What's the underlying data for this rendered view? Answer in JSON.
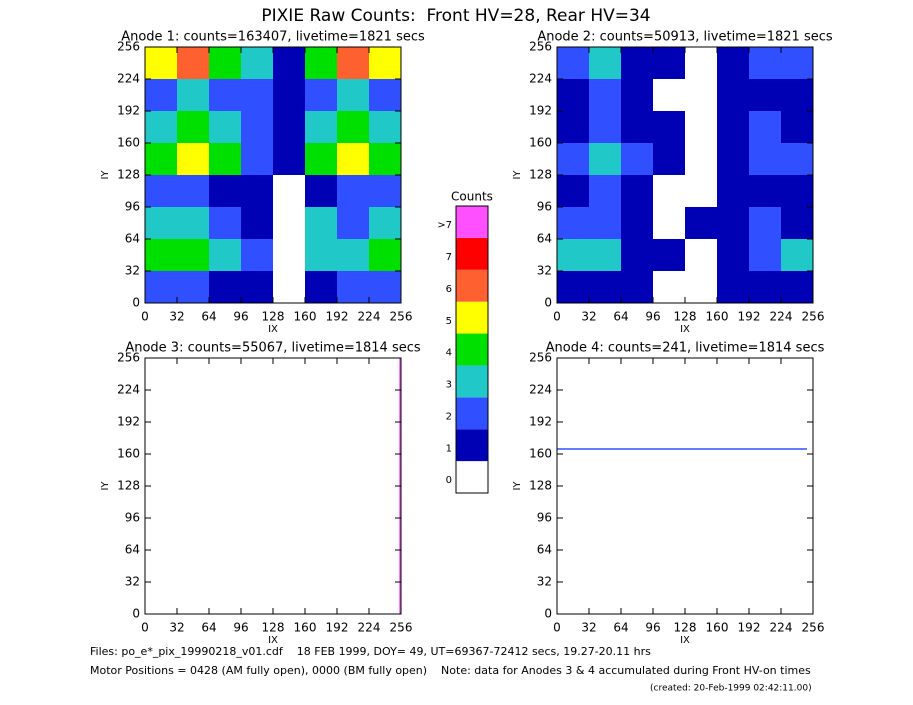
{
  "title": "PIXIE Raw Counts:  Front HV=28, Rear HV=34",
  "notes": [
    "Files: po_e*_pix_19990218_v01.cdf    18 FEB 1999, DOY= 49, UT=69367-72412 secs, 19.27-20.11 hrs",
    "Motor Positions = 0428 (AM fully open), 0000 (BM fully open)    Note: data for Anodes 3 & 4 accumulated during Front HV-on times",
    "(created: 20-Feb-1999 02:42:11.00)"
  ],
  "chart_data": [
    {
      "type": "heatmap",
      "title": "Anode 1: counts=163407, livetime=1821 secs",
      "xlabel": "IX",
      "ylabel": "IY",
      "xlim": [
        0,
        256
      ],
      "ylim": [
        0,
        256
      ],
      "xticks": [
        0,
        32,
        64,
        96,
        128,
        160,
        192,
        224,
        256
      ],
      "yticks": [
        0,
        32,
        64,
        96,
        128,
        160,
        192,
        224,
        256
      ],
      "z": [
        [
          2,
          2,
          1,
          1,
          0,
          1,
          2,
          2
        ],
        [
          4,
          4,
          3,
          2,
          0,
          3,
          3,
          4
        ],
        [
          3,
          3,
          2,
          1,
          0,
          3,
          2,
          3
        ],
        [
          2,
          2,
          1,
          1,
          0,
          1,
          2,
          2
        ],
        [
          4,
          5,
          4,
          2,
          1,
          4,
          5,
          4
        ],
        [
          3,
          4,
          3,
          2,
          1,
          3,
          4,
          3
        ],
        [
          2,
          3,
          2,
          2,
          1,
          2,
          3,
          2
        ],
        [
          5,
          6,
          4,
          3,
          1,
          4,
          6,
          5
        ]
      ]
    },
    {
      "type": "heatmap",
      "title": "Anode 2: counts=50913, livetime=1821 secs",
      "xlabel": "IX",
      "ylabel": "IY",
      "xlim": [
        0,
        256
      ],
      "ylim": [
        0,
        256
      ],
      "xticks": [
        0,
        32,
        64,
        96,
        128,
        160,
        192,
        224,
        256
      ],
      "yticks": [
        0,
        32,
        64,
        96,
        128,
        160,
        192,
        224,
        256
      ],
      "z": [
        [
          1,
          1,
          1,
          0,
          0,
          1,
          1,
          1
        ],
        [
          3,
          3,
          1,
          1,
          0,
          1,
          2,
          3
        ],
        [
          2,
          2,
          1,
          0,
          1,
          1,
          2,
          1
        ],
        [
          1,
          2,
          1,
          0,
          0,
          1,
          1,
          1
        ],
        [
          2,
          3,
          2,
          1,
          0,
          1,
          2,
          2
        ],
        [
          1,
          2,
          1,
          1,
          0,
          1,
          2,
          1
        ],
        [
          1,
          2,
          1,
          0,
          0,
          1,
          1,
          1
        ],
        [
          2,
          3,
          1,
          1,
          0,
          1,
          2,
          2
        ]
      ]
    },
    {
      "type": "heatmap",
      "title": "Anode 3: counts=55067, livetime=1814 secs",
      "xlabel": "IX",
      "ylabel": "IY",
      "xlim": [
        0,
        256
      ],
      "ylim": [
        0,
        256
      ],
      "xticks": [
        0,
        32,
        64,
        96,
        128,
        160,
        192,
        224,
        256
      ],
      "yticks": [
        0,
        32,
        64,
        96,
        128,
        160,
        192,
        224,
        256
      ],
      "series": [
        {
          "color": "#ff50ff",
          "x": [
            255,
            255
          ],
          "values": [
            0,
            256
          ]
        }
      ]
    },
    {
      "type": "heatmap",
      "title": "Anode 4: counts=241, livetime=1814 secs",
      "xlabel": "IX",
      "ylabel": "IY",
      "xlim": [
        0,
        256
      ],
      "ylim": [
        0,
        256
      ],
      "xticks": [
        0,
        32,
        64,
        96,
        128,
        160,
        192,
        224,
        256
      ],
      "yticks": [
        0,
        32,
        64,
        96,
        128,
        160,
        192,
        224,
        256
      ],
      "series": [
        {
          "color": "#3050ff",
          "x": [
            0,
            250
          ],
          "values": [
            165,
            165
          ]
        }
      ]
    },
    {
      "type": "colorbar",
      "title": "Counts",
      "categories": [
        "0",
        "1",
        "2",
        "3",
        "4",
        "5",
        "6",
        "7",
        ">7"
      ],
      "colors": [
        "#ffffff",
        "#0000b4",
        "#3050ff",
        "#20c8c8",
        "#00e000",
        "#ffff00",
        "#ff6030",
        "#ff0000",
        "#ff50ff"
      ]
    }
  ]
}
